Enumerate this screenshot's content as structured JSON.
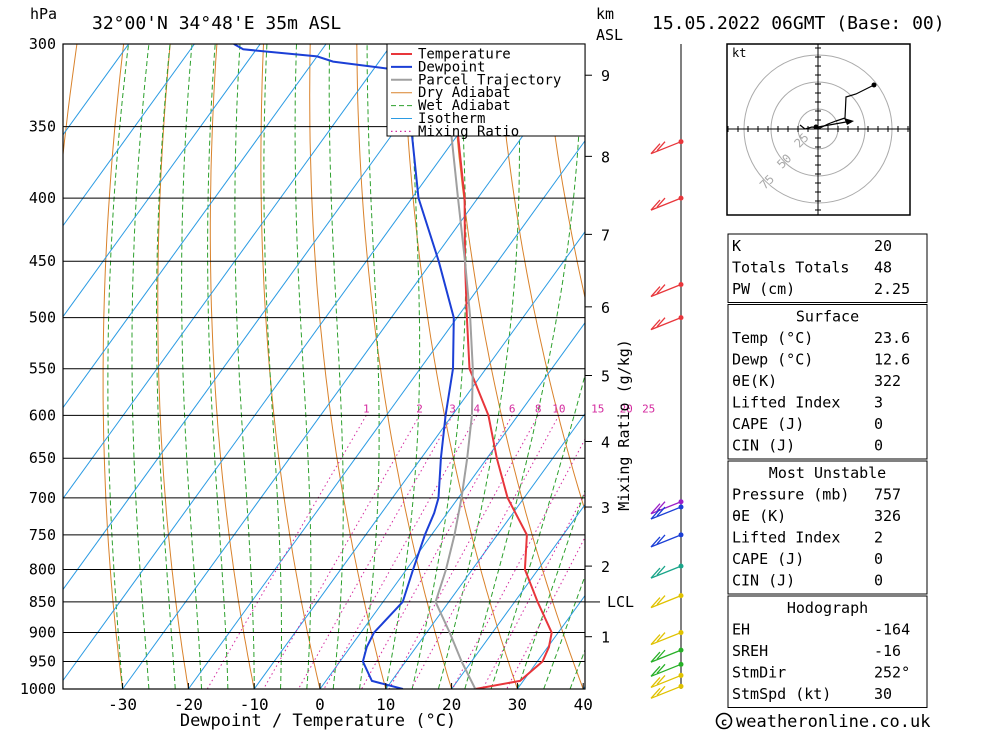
{
  "header": {
    "unit_left": "hPa",
    "location": "32°00'N  34°48'E  35m  ASL",
    "unit_km": "km",
    "unit_asl": "ASL",
    "datetime": "15.05.2022  06GMT  (Base: 00)"
  },
  "colors": {
    "temperature": "#e8363b",
    "dewpoint": "#1b3fd6",
    "parcel": "#a0a0a0",
    "dry_adiabat": "#d9822b",
    "wet_adiabat": "#2da02d",
    "isotherm": "#2b9be3",
    "mixing_ratio": "#d42a9f"
  },
  "chart_data": {
    "type": "line",
    "chart_kind": "skew-T log-P sounding",
    "xlabel": "Dewpoint / Temperature (°C)",
    "ylabel_left": "hPa",
    "ylabel_right": "Mixing Ratio (g/kg)",
    "x_ticks": [
      -30,
      -20,
      -10,
      0,
      10,
      20,
      30,
      40
    ],
    "pressure_ticks": [
      300,
      350,
      400,
      450,
      500,
      550,
      600,
      650,
      700,
      750,
      800,
      850,
      900,
      950,
      1000
    ],
    "height_ticks_km": [
      {
        "label": "1",
        "p": 907
      },
      {
        "label": "2",
        "p": 795
      },
      {
        "label": "3",
        "p": 712
      },
      {
        "label": "4",
        "p": 630
      },
      {
        "label": "5",
        "p": 557
      },
      {
        "label": "6",
        "p": 490
      },
      {
        "label": "7",
        "p": 428
      },
      {
        "label": "8",
        "p": 370
      },
      {
        "label": "9",
        "p": 318
      }
    ],
    "lcl_label": "LCL",
    "lcl_pressure": 850,
    "mixing_ratio_labels": [
      "1",
      "2",
      "3",
      "4",
      "6",
      "8",
      "10",
      "15",
      "20",
      "25"
    ],
    "mixing_ratio_values": [
      1,
      2,
      3,
      4,
      6,
      8,
      10,
      15,
      20,
      25
    ],
    "legend": [
      "Temperature",
      "Dewpoint",
      "Parcel Trajectory",
      "Dry Adiabat",
      "Wet Adiabat",
      "Isotherm",
      "Mixing Ratio"
    ],
    "series": [
      {
        "name": "Temperature",
        "points": [
          [
            1000,
            23.6
          ],
          [
            985,
            29.5
          ],
          [
            950,
            30.8
          ],
          [
            925,
            30.2
          ],
          [
            900,
            29
          ],
          [
            850,
            23.5
          ],
          [
            800,
            18
          ],
          [
            750,
            14.5
          ],
          [
            700,
            7.5
          ],
          [
            650,
            1.5
          ],
          [
            600,
            -4.5
          ],
          [
            550,
            -12.5
          ],
          [
            500,
            -18.5
          ],
          [
            450,
            -25
          ],
          [
            400,
            -32
          ],
          [
            350,
            -41
          ],
          [
            325,
            -46
          ],
          [
            312,
            -48.5
          ],
          [
            305,
            -48.8
          ],
          [
            300,
            -49.5
          ]
        ]
      },
      {
        "name": "Dewpoint",
        "points": [
          [
            1000,
            12.6
          ],
          [
            985,
            7
          ],
          [
            950,
            3.5
          ],
          [
            925,
            2.5
          ],
          [
            900,
            2
          ],
          [
            850,
            3
          ],
          [
            800,
            1
          ],
          [
            750,
            -1
          ],
          [
            720,
            -2
          ],
          [
            700,
            -3
          ],
          [
            650,
            -7
          ],
          [
            600,
            -11
          ],
          [
            550,
            -15
          ],
          [
            500,
            -20.5
          ],
          [
            450,
            -29
          ],
          [
            400,
            -39
          ],
          [
            350,
            -48
          ],
          [
            330,
            -53
          ],
          [
            315,
            -56
          ],
          [
            310,
            -67
          ],
          [
            307,
            -70
          ],
          [
            303,
            -82
          ],
          [
            300,
            -84
          ]
        ]
      },
      {
        "name": "Parcel Trajectory",
        "points": [
          [
            1000,
            23.6
          ],
          [
            950,
            18.5
          ],
          [
            900,
            13.5
          ],
          [
            850,
            8
          ],
          [
            800,
            6
          ],
          [
            750,
            3.5
          ],
          [
            700,
            0.5
          ],
          [
            650,
            -3
          ],
          [
            600,
            -7
          ],
          [
            550,
            -12
          ],
          [
            500,
            -18
          ],
          [
            450,
            -25
          ],
          [
            400,
            -33
          ],
          [
            350,
            -42
          ],
          [
            300,
            -54
          ]
        ]
      }
    ],
    "wind_profile": {
      "description": "wind barbs along pressure axis",
      "levels": [
        {
          "p": 360,
          "color": "red"
        },
        {
          "p": 400,
          "color": "red"
        },
        {
          "p": 470,
          "color": "red"
        },
        {
          "p": 500,
          "color": "red"
        },
        {
          "p": 705,
          "color": "purple"
        },
        {
          "p": 712,
          "color": "blue"
        },
        {
          "p": 750,
          "color": "blue"
        },
        {
          "p": 795,
          "color": "teal"
        },
        {
          "p": 840,
          "color": "yellow"
        },
        {
          "p": 900,
          "color": "yellow"
        },
        {
          "p": 930,
          "color": "green"
        },
        {
          "p": 955,
          "color": "green"
        },
        {
          "p": 975,
          "color": "yellow"
        },
        {
          "p": 995,
          "color": "yellow"
        }
      ]
    },
    "hodograph": {
      "unit_label": "kt",
      "ring_labels": [
        "25",
        "50",
        "75"
      ]
    }
  },
  "indices_table": {
    "rows": [
      {
        "label": "K",
        "value": "20"
      },
      {
        "label": "Totals Totals",
        "value": "48"
      },
      {
        "label": "PW (cm)",
        "value": "2.25"
      }
    ]
  },
  "surface_table": {
    "title": "Surface",
    "rows": [
      {
        "label": "Temp (°C)",
        "value": "23.6"
      },
      {
        "label": "Dewp (°C)",
        "value": "12.6"
      },
      {
        "label": "θE(K)",
        "value": "322"
      },
      {
        "label": "Lifted Index",
        "value": "3"
      },
      {
        "label": "CAPE (J)",
        "value": "0"
      },
      {
        "label": "CIN (J)",
        "value": "0"
      }
    ]
  },
  "most_unstable_table": {
    "title": "Most Unstable",
    "rows": [
      {
        "label": "Pressure (mb)",
        "value": "757"
      },
      {
        "label": "θE (K)",
        "value": "326"
      },
      {
        "label": "Lifted Index",
        "value": "2"
      },
      {
        "label": "CAPE (J)",
        "value": "0"
      },
      {
        "label": "CIN (J)",
        "value": "0"
      }
    ]
  },
  "hodograph_table": {
    "title": "Hodograph",
    "rows": [
      {
        "label": "EH",
        "value": "-164"
      },
      {
        "label": "SREH",
        "value": "-16"
      },
      {
        "label": "StmDir",
        "value": "252°"
      },
      {
        "label": "StmSpd (kt)",
        "value": "30"
      }
    ]
  },
  "footer": {
    "copyright_icon": "copyright-icon",
    "site": "weatheronline.co.uk"
  }
}
